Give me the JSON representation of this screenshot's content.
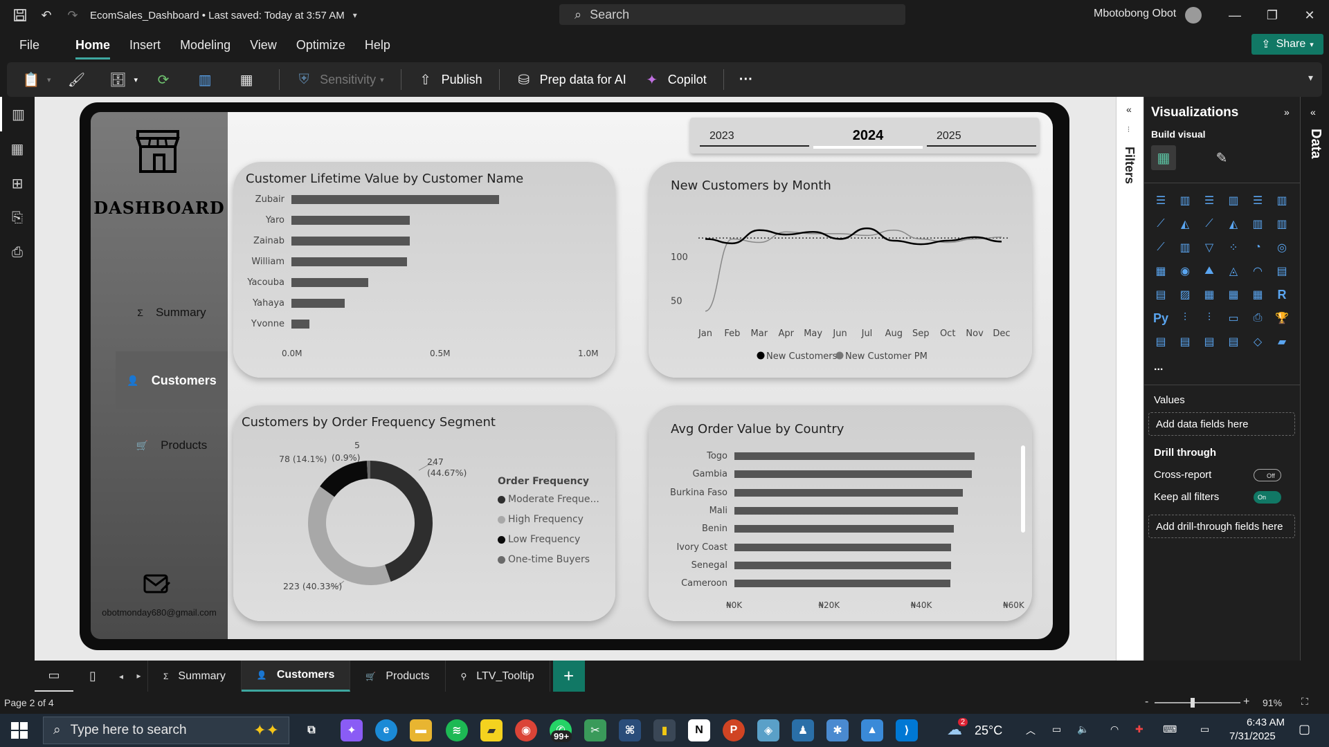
{
  "titlebar": {
    "doc_title": "EcomSales_Dashboard • Last saved: Today at 3:57 AM",
    "search_placeholder": "Search",
    "user_name": "Mbotobong Obot"
  },
  "menu": [
    "File",
    "Home",
    "Insert",
    "Modeling",
    "View",
    "Optimize",
    "Help"
  ],
  "share_label": "Share",
  "ribbon": {
    "sensitivity": "Sensitivity",
    "publish": "Publish",
    "prep_data": "Prep data for AI",
    "copilot": "Copilot",
    "more": "···"
  },
  "nav": {
    "title": "DASHBOARD",
    "summary": "Summary",
    "customers": "Customers",
    "products": "Products",
    "email": "obotmonday680@gmail.com"
  },
  "years": [
    "2023",
    "2024",
    "2025"
  ],
  "clv": {
    "title": "Customer Lifetime Value by Customer Name",
    "names": [
      "Zubair",
      "Yaro",
      "Zainab",
      "William",
      "Yacouba",
      "Yahaya",
      "Yvonne"
    ],
    "values": [
      0.7,
      0.4,
      0.4,
      0.39,
      0.26,
      0.18,
      0.06
    ],
    "ticks": [
      "0.0M",
      "0.5M",
      "1.0M"
    ],
    "max": 1.0
  },
  "newcust": {
    "title": "New Customers by Month",
    "months": [
      "Jan",
      "Feb",
      "Mar",
      "Apr",
      "May",
      "Jun",
      "Jul",
      "Aug",
      "Sep",
      "Oct",
      "Nov",
      "Dec"
    ],
    "y_ticks": [
      "100",
      "50"
    ],
    "legend": [
      "New Customers",
      "New Customer PM"
    ],
    "series_current": [
      120,
      115,
      130,
      125,
      128,
      120,
      132,
      118,
      114,
      118,
      122,
      117
    ],
    "series_pm": [
      38,
      120,
      116,
      128,
      126,
      126,
      124,
      130,
      120,
      116,
      120,
      122
    ],
    "ylim": [
      30,
      140
    ],
    "avg": 121
  },
  "segment": {
    "title": "Customers by Order Frequency Segment",
    "legend_title": "Order Frequency",
    "legend": [
      "Moderate Freque...",
      "High Frequency",
      "Low Frequency",
      "One-time Buyers"
    ],
    "slices": [
      {
        "label": "247",
        "pct": "(44.67%)",
        "value": 247,
        "color": "#2e2e2e"
      },
      {
        "label": "223 (40.33%)",
        "pct": "",
        "value": 223,
        "color": "#a8a8a8"
      },
      {
        "label": "78 (14.1%)",
        "pct": "",
        "value": 78,
        "color": "#0a0a0a"
      },
      {
        "label": "5",
        "pct": "(0.9%)",
        "value": 5,
        "color": "#6a6a6a"
      }
    ]
  },
  "aov": {
    "title": "Avg Order Value by Country",
    "countries": [
      "Togo",
      "Gambia",
      "Burkina Faso",
      "Mali",
      "Benin",
      "Ivory Coast",
      "Senegal",
      "Cameroon"
    ],
    "values": [
      52,
      51.5,
      49.5,
      48.5,
      47.5,
      47,
      47,
      46.8
    ],
    "ticks": [
      "₦0K",
      "₦20K",
      "₦40K",
      "₦60K"
    ],
    "max": 60
  },
  "viz_pane": {
    "title": "Visualizations",
    "build_visual": "Build visual",
    "values": "Values",
    "add_data": "Add data fields here",
    "drill_through": "Drill through",
    "cross_report": "Cross-report",
    "cross_state": "Off",
    "keep_filters": "Keep all filters",
    "keep_state": "On",
    "add_drill": "Add drill-through fields here",
    "more": "...",
    "R": "R",
    "Py": "Py"
  },
  "filters_label": "Filters",
  "data_label": "Data",
  "page_tabs": [
    "Summary",
    "Customers",
    "Products",
    "LTV_Tooltip"
  ],
  "add_page": "+",
  "status": {
    "page": "Page 2 of 4",
    "zoom": "91%",
    "zoom_minus": "-",
    "zoom_plus": "+"
  },
  "taskbar": {
    "search": "Type here to search",
    "badge": "99+",
    "notif": "2",
    "temp": "25°C",
    "time": "6:43 AM",
    "date": "7/31/2025"
  }
}
